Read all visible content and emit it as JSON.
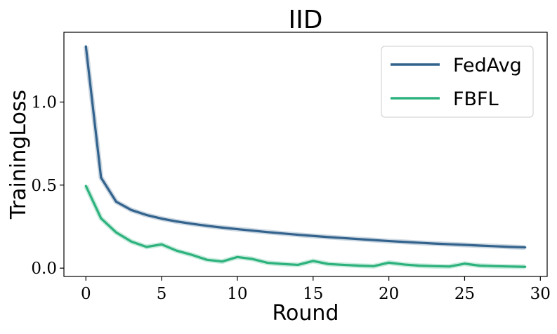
{
  "chart_data": {
    "type": "line",
    "title": "IID",
    "xlabel": "Round",
    "ylabel": "TrainingLoss",
    "xlim": [
      -1.45,
      30.45
    ],
    "ylim": [
      -0.05,
      1.42
    ],
    "xticks": [
      0,
      5,
      10,
      15,
      20,
      25,
      30
    ],
    "yticks": [
      0.0,
      0.5,
      1.0
    ],
    "ytick_labels": [
      "0.0",
      "0.5",
      "1.0"
    ],
    "grid": false,
    "legend_position": "top-right",
    "x": [
      0,
      1,
      2,
      3,
      4,
      5,
      6,
      7,
      8,
      9,
      10,
      11,
      12,
      13,
      14,
      15,
      16,
      17,
      18,
      19,
      20,
      21,
      22,
      23,
      24,
      25,
      26,
      27,
      28,
      29
    ],
    "series": [
      {
        "name": "FedAvg",
        "color": "#33638d",
        "values": [
          1.335,
          0.545,
          0.4,
          0.35,
          0.32,
          0.298,
          0.281,
          0.267,
          0.255,
          0.244,
          0.235,
          0.226,
          0.217,
          0.209,
          0.201,
          0.194,
          0.187,
          0.181,
          0.175,
          0.169,
          0.163,
          0.158,
          0.153,
          0.148,
          0.144,
          0.14,
          0.136,
          0.132,
          0.128,
          0.125
        ]
      },
      {
        "name": "FBFL",
        "color": "#2db27d",
        "values": [
          0.495,
          0.3,
          0.215,
          0.16,
          0.128,
          0.143,
          0.105,
          0.08,
          0.05,
          0.04,
          0.067,
          0.055,
          0.032,
          0.025,
          0.02,
          0.043,
          0.025,
          0.02,
          0.015,
          0.012,
          0.033,
          0.022,
          0.015,
          0.012,
          0.01,
          0.027,
          0.015,
          0.012,
          0.01,
          0.008
        ]
      }
    ]
  }
}
